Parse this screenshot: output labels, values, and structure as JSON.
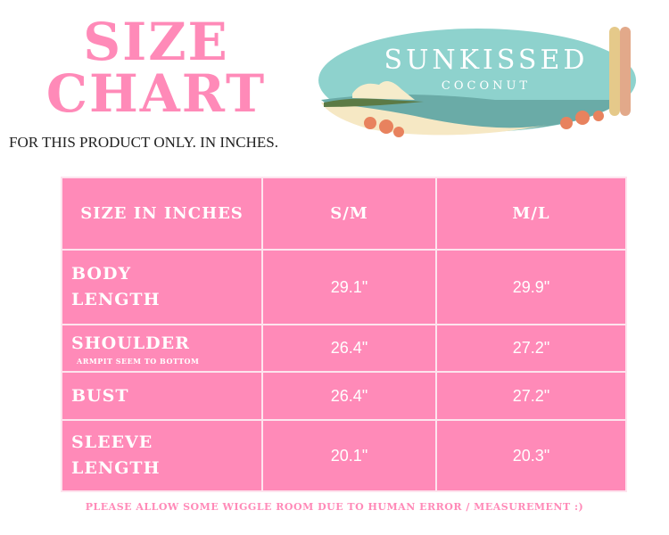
{
  "title": {
    "line1": "SIZE",
    "line2": "CHART"
  },
  "subtitle": "FOR THIS PRODUCT ONLY. IN INCHES.",
  "logo": {
    "brand": "SUNKISSED",
    "tagline": "COCONUT"
  },
  "table": {
    "headers": [
      "SIZE IN INCHES",
      "S/M",
      "M/L"
    ],
    "rows": [
      {
        "label1": "BODY",
        "label2": "LENGTH",
        "note": "",
        "values": [
          "29.1\"",
          "29.9\""
        ]
      },
      {
        "label1": "SHOULDER",
        "label2": "",
        "note": "ARMPIT SEEM TO BOTTOM",
        "values": [
          "26.4\"",
          "27.2\""
        ]
      },
      {
        "label1": "BUST",
        "label2": "",
        "note": "",
        "values": [
          "26.4\"",
          "27.2\""
        ]
      },
      {
        "label1": "SLEEVE",
        "label2": "LENGTH",
        "note": "",
        "values": [
          "20.1\"",
          "20.3\""
        ]
      }
    ]
  },
  "footer": "PLEASE ALLOW SOME WIGGLE ROOM DUE TO HUMAN ERROR / MEASUREMENT :)",
  "colors": {
    "accent": "#ff8ab8",
    "logo_sky": "#8ed2cd",
    "sand": "#f6e8c4"
  }
}
